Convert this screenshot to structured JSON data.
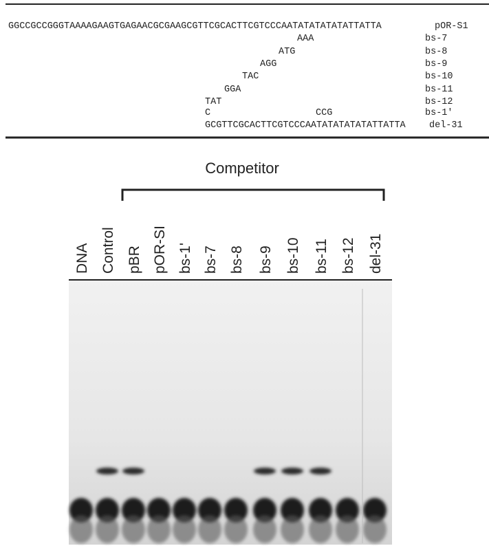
{
  "sequence_table": {
    "rows": [
      {
        "parts": [
          "GGCCGCCGGGTAAAAGAAGTGAGAACGCGAAGCGTTCGCACTTCGTCCCAATATATATATATTATTA"
        ],
        "label": "pOR-S1"
      },
      {
        "parts": [
          "AAA"
        ],
        "label": "bs-7"
      },
      {
        "parts": [
          "ATG"
        ],
        "label": "bs-8"
      },
      {
        "parts": [
          "AGG"
        ],
        "label": "bs-9"
      },
      {
        "parts": [
          "TAC"
        ],
        "label": "bs-10"
      },
      {
        "parts": [
          "GGA"
        ],
        "label": "bs-11"
      },
      {
        "parts": [
          "TAT"
        ],
        "label": "bs-12"
      },
      {
        "parts": [
          "C",
          "CCG"
        ],
        "label": "bs-1'"
      },
      {
        "parts": [
          "GCGTTCGCACTTCGTCCCAATATATATATATTATTA"
        ],
        "label": "del-31"
      }
    ]
  },
  "gel": {
    "competitor_label": "Competitor",
    "lanes": [
      "DNA",
      "Control",
      "pBR",
      "pOR-SI",
      "bs-1'",
      "bs-7",
      "bs-8",
      "bs-9",
      "bs-10",
      "bs-11",
      "bs-12",
      "del-31"
    ]
  }
}
